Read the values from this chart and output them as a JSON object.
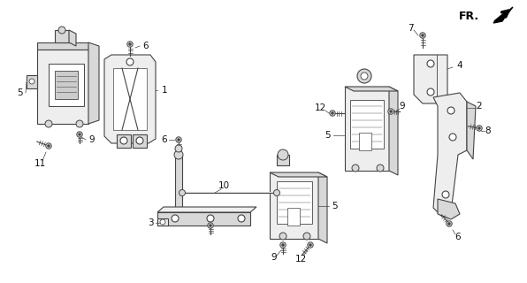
{
  "bg_color": "#ffffff",
  "line_color": "#444444",
  "text_color": "#111111",
  "fig_width": 5.96,
  "fig_height": 3.2,
  "dpi": 100,
  "gray_fill": "#d8d8d8",
  "light_fill": "#eeeeee",
  "white_fill": "#ffffff"
}
